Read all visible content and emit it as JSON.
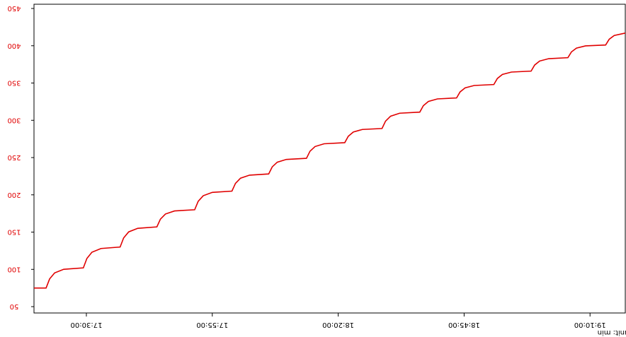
{
  "chart_data": {
    "type": "line",
    "x_unit_label": "unit: min",
    "xlim": [
      1039.6,
      1157.0
    ],
    "xticks": [
      {
        "value": 1050,
        "label": "17:30:00"
      },
      {
        "value": 1075,
        "label": "17:55:00"
      },
      {
        "value": 1100,
        "label": "18:20:00"
      },
      {
        "value": 1125,
        "label": "18:45:00"
      },
      {
        "value": 1150,
        "label": "19:10:00"
      }
    ],
    "ylim": [
      41.5,
      455.7
    ],
    "yticks": [
      50,
      100,
      150,
      200,
      250,
      300,
      350,
      400,
      450
    ],
    "ytick_color": "#e00000",
    "grid": false,
    "series": [
      {
        "color": "#e00000",
        "x": [
          1039.6,
          1042.0,
          1042.7,
          1043.7,
          1045.5,
          1049.4,
          1050.1,
          1051.1,
          1052.9,
          1056.7,
          1057.4,
          1058.4,
          1060.2,
          1064.0,
          1064.7,
          1065.7,
          1067.5,
          1071.5,
          1072.2,
          1073.2,
          1075.0,
          1078.9,
          1079.6,
          1080.6,
          1082.4,
          1086.2,
          1086.9,
          1087.9,
          1089.7,
          1093.7,
          1094.4,
          1095.4,
          1097.2,
          1101.3,
          1102.0,
          1103.0,
          1104.8,
          1108.7,
          1109.4,
          1110.4,
          1112.2,
          1116.2,
          1116.9,
          1117.9,
          1119.7,
          1123.5,
          1124.2,
          1125.2,
          1127.0,
          1130.9,
          1131.6,
          1132.6,
          1134.4,
          1138.3,
          1139.0,
          1140.0,
          1141.8,
          1145.6,
          1146.3,
          1147.3,
          1149.1,
          1153.1,
          1153.8,
          1154.8,
          1157.0
        ],
        "values": [
          75,
          75,
          87.2,
          95.3,
          100.1,
          102,
          114.6,
          123,
          128,
          130,
          142.2,
          150.3,
          155.1,
          157,
          167.4,
          174.3,
          178.4,
          180,
          191.3,
          198.8,
          203.3,
          205,
          215.4,
          222.3,
          226.4,
          228,
          237.5,
          243.8,
          247.5,
          249,
          258.5,
          264.8,
          268.5,
          270,
          278.6,
          284.3,
          287.7,
          289,
          298.9,
          305.5,
          309.5,
          311,
          319.6,
          325.3,
          328.7,
          330,
          338.1,
          343.5,
          346.7,
          348,
          356.1,
          361.5,
          364.7,
          366,
          374.1,
          379.5,
          382.7,
          384,
          391.7,
          396.8,
          399.8,
          401,
          408.7,
          413.8,
          417
        ]
      }
    ]
  }
}
